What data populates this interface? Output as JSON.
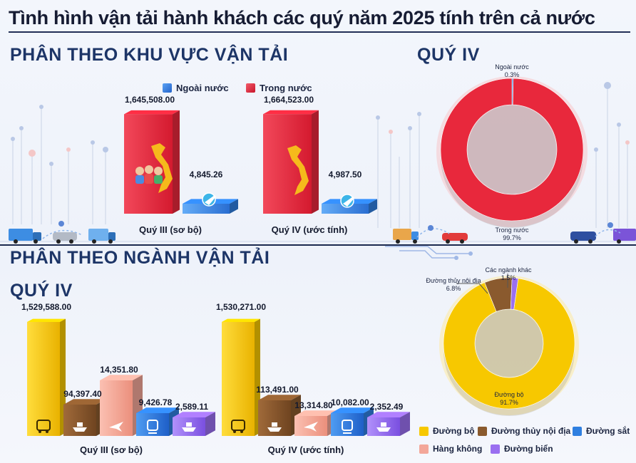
{
  "title": "Tình hình vận tải hành khách các quý năm 2025 tính trên cả nước",
  "sections": {
    "by_region": "PHÂN THEO KHU VỰC VẬN TẢI",
    "q4_top": "QUÝ IV",
    "by_industry": "PHÂN THEO NGÀNH VẬN TẢI",
    "q4_bottom": "QUÝ IV"
  },
  "colors": {
    "domestic": "#e8283c",
    "foreign": "#2f7fe0",
    "road": "#f7c800",
    "waterway": "#8a5a2e",
    "rail": "#2f7fe0",
    "aviation": "#f3a799",
    "sea": "#9a6ff0"
  },
  "chart_data": [
    {
      "type": "bar",
      "legend": [
        "Ngoài nước",
        "Trong nước"
      ],
      "legend_position": "top",
      "categories": [
        "Quý III (sơ bộ)",
        "Quý IV (ước tính)"
      ],
      "series": [
        {
          "name": "Trong nước",
          "values": [
            1645508.0,
            1664523.0
          ],
          "labels": [
            "1,645,508.00",
            "1,664,523.00"
          ]
        },
        {
          "name": "Ngoài nước",
          "values": [
            4845.26,
            4987.5
          ],
          "labels": [
            "4,845.26",
            "4,987.50"
          ]
        }
      ]
    },
    {
      "type": "pie",
      "style": "donut",
      "slices": [
        {
          "name": "Ngoài nước",
          "value": 0.3,
          "label": "0.3%"
        },
        {
          "name": "Trong nước",
          "value": 99.7,
          "label": "99.7%"
        }
      ]
    },
    {
      "type": "bar",
      "categories": [
        "Quý III (sơ bộ)",
        "Quý IV (ước tính)"
      ],
      "series": [
        {
          "name": "Đường bộ",
          "values": [
            1529588.0,
            1530271.0
          ],
          "labels": [
            "1,529,588.00",
            "1,530,271.00"
          ]
        },
        {
          "name": "Đường thủy nội địa",
          "values": [
            94397.4,
            113491.0
          ],
          "labels": [
            "94,397.40",
            "113,491.00"
          ]
        },
        {
          "name": "Hàng không",
          "values": [
            14351.8,
            13314.8
          ],
          "labels": [
            "14,351.80",
            "13,314.80"
          ]
        },
        {
          "name": "Đường sắt",
          "values": [
            9426.78,
            10082.0
          ],
          "labels": [
            "9,426.78",
            "10,082.00"
          ]
        },
        {
          "name": "Đường biển",
          "values": [
            2589.11,
            2352.49
          ],
          "labels": [
            "2,589.11",
            "2,352.49"
          ]
        }
      ]
    },
    {
      "type": "pie",
      "style": "donut",
      "slices": [
        {
          "name": "Đường bộ",
          "value": 91.7,
          "label": "91.7%"
        },
        {
          "name": "Đường thủy nội địa",
          "value": 6.8,
          "label": "6.8%"
        },
        {
          "name": "Các ngành khác",
          "value": 1.5,
          "label": "1.5%"
        }
      ],
      "legend": [
        "Đường bộ",
        "Đường thủy nội địa",
        "Đường sắt",
        "Hàng không",
        "Đường biển"
      ],
      "legend_position": "bottom"
    }
  ]
}
